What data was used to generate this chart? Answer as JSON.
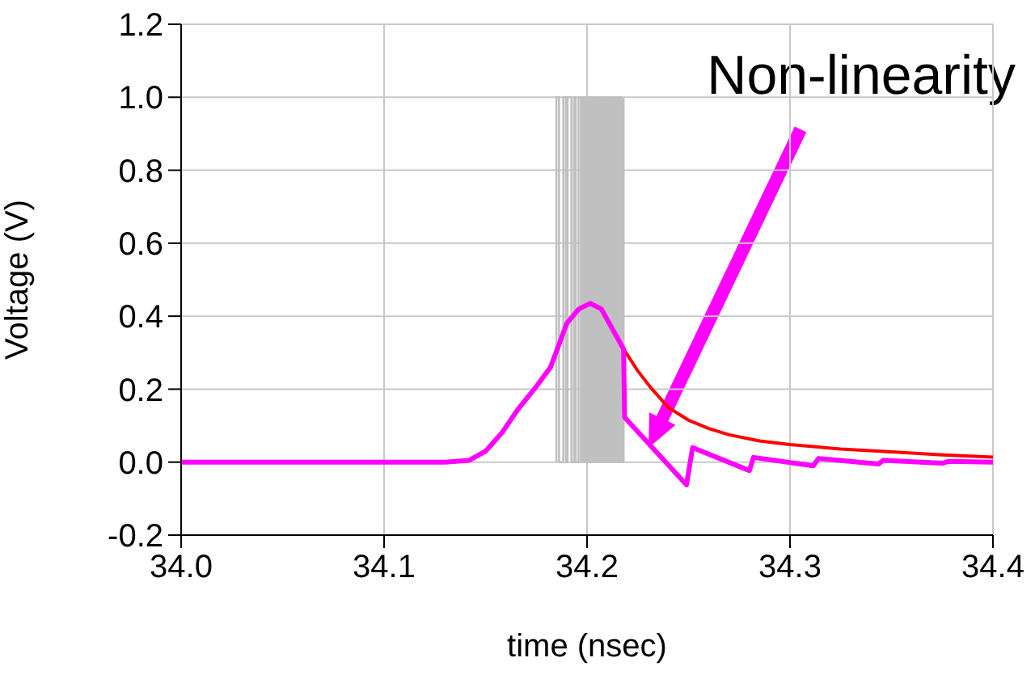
{
  "chart_data": {
    "type": "line",
    "xlabel": "time (nsec)",
    "ylabel": "Voltage (V)",
    "annotations": [
      "Non-linearity"
    ],
    "xlim": [
      34.0,
      34.4
    ],
    "xticks": [
      {
        "value": 34,
        "label": "34.0"
      },
      34.1,
      34.2,
      34.3,
      34.4
    ],
    "ylim": [
      -0.2,
      1.2
    ],
    "yticks": [
      -0.2,
      {
        "value": 0,
        "label": "0.0"
      },
      0.2,
      0.4,
      0.6,
      0.8,
      {
        "value": 1,
        "label": "1.0"
      },
      1.2
    ],
    "grid": true,
    "marker": "none",
    "line_style": "solid",
    "series": [
      {
        "color": "#c0c0c0",
        "x": [
          34.1849,
          34.1849,
          34.1862,
          34.1862,
          34.1883,
          34.1883,
          34.1896,
          34.1896,
          34.1904,
          34.1904,
          34.1923,
          34.1923,
          34.1936,
          34.1936,
          34.1944,
          34.1944,
          34.1958,
          34.1958,
          34.197,
          34.197,
          34.198,
          34.198,
          34.199,
          34.199,
          34.2,
          34.2,
          34.201,
          34.201,
          34.202,
          34.202,
          34.203,
          34.203,
          34.204,
          34.204,
          34.205,
          34.205,
          34.206,
          34.206,
          34.207,
          34.207,
          34.208,
          34.208,
          34.209,
          34.209,
          34.21,
          34.21,
          34.211,
          34.211,
          34.212,
          34.212,
          34.213,
          34.213,
          34.214,
          34.214,
          34.215,
          34.215,
          34.216,
          34.216,
          34.217,
          34.217,
          34.218,
          34.218
        ],
        "values": [
          0,
          1,
          1,
          0,
          0,
          1,
          1,
          0,
          0,
          1,
          1,
          0,
          0,
          1,
          1,
          0,
          0,
          1,
          1,
          0,
          0,
          1,
          1,
          0,
          0,
          1,
          1,
          0,
          0,
          1,
          1,
          0,
          0,
          1,
          1,
          0,
          0,
          1,
          1,
          0,
          0,
          1,
          1,
          0,
          0,
          1,
          1,
          0,
          0,
          1,
          1,
          0,
          0,
          1,
          1,
          0,
          0,
          1,
          1,
          0,
          0,
          1
        ]
      },
      {
        "color": "#ff0000",
        "x": [
          34.218,
          34.225,
          34.232,
          34.24,
          34.25,
          34.26,
          34.27,
          34.285,
          34.3,
          34.325,
          34.35,
          34.375,
          34.4
        ],
        "values": [
          0.31,
          0.25,
          0.2,
          0.15,
          0.115,
          0.092,
          0.075,
          0.058,
          0.048,
          0.036,
          0.028,
          0.02,
          0.014
        ]
      },
      {
        "color": "#ff00ff",
        "x": [
          34.0,
          34.13,
          34.142,
          34.15,
          34.158,
          34.166,
          34.174,
          34.182,
          34.19,
          34.196,
          34.2016,
          34.207,
          34.213,
          34.218,
          34.2185,
          34.249,
          34.252,
          34.28,
          34.282,
          34.3115,
          34.314,
          34.3435,
          34.346,
          34.375,
          34.378,
          34.4
        ],
        "values": [
          0,
          0,
          0.005,
          0.03,
          0.08,
          0.145,
          0.2,
          0.26,
          0.38,
          0.42,
          0.435,
          0.42,
          0.36,
          0.31,
          0.123,
          -0.062,
          0.04,
          -0.023,
          0.013,
          -0.01,
          0.01,
          -0.005,
          0.005,
          -0.003,
          0.002,
          0
        ]
      }
    ]
  }
}
